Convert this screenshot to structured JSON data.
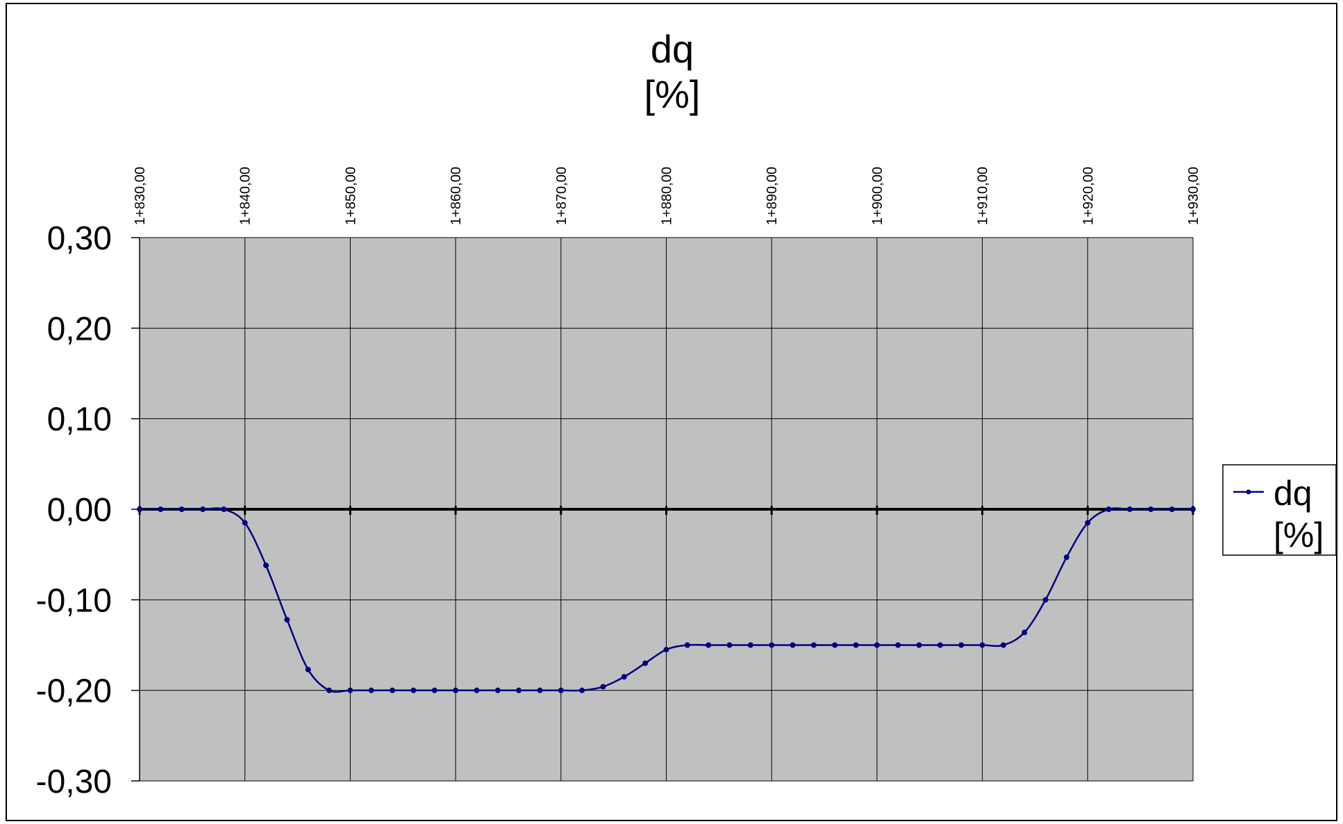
{
  "chart_data": {
    "type": "line",
    "title_line1": "dq",
    "title_line2": "[%]",
    "xlabel": "",
    "ylabel": "",
    "x_ticks": [
      "1+830,00",
      "1+840,00",
      "1+850,00",
      "1+860,00",
      "1+870,00",
      "1+880,00",
      "1+890,00",
      "1+900,00",
      "1+910,00",
      "1+920,00",
      "1+930,00"
    ],
    "y_ticks": [
      "0,30",
      "0,20",
      "0,10",
      "0,00",
      "-0,10",
      "-0,20",
      "-0,30"
    ],
    "xlim": [
      1830,
      1930
    ],
    "ylim": [
      -0.3,
      0.3
    ],
    "grid": true,
    "legend_position": "right",
    "colors": {
      "series": "#000080",
      "plot_bg": "#c0c0c0",
      "zero_line": "#000000",
      "grid": "#000000"
    },
    "series": [
      {
        "name_line1": "dq",
        "name_line2": "[%]",
        "x": [
          1830,
          1832,
          1834,
          1836,
          1838,
          1840,
          1842,
          1844,
          1846,
          1848,
          1850,
          1852,
          1854,
          1856,
          1858,
          1860,
          1862,
          1864,
          1866,
          1868,
          1870,
          1872,
          1874,
          1876,
          1878,
          1880,
          1882,
          1884,
          1886,
          1888,
          1890,
          1892,
          1894,
          1896,
          1898,
          1900,
          1902,
          1904,
          1906,
          1908,
          1910,
          1912,
          1914,
          1916,
          1918,
          1920,
          1922,
          1924,
          1926,
          1928,
          1930
        ],
        "y": [
          0,
          0,
          0,
          0,
          0,
          -0.015,
          -0.062,
          -0.122,
          -0.177,
          -0.2,
          -0.2,
          -0.2,
          -0.2,
          -0.2,
          -0.2,
          -0.2,
          -0.2,
          -0.2,
          -0.2,
          -0.2,
          -0.2,
          -0.2,
          -0.196,
          -0.185,
          -0.17,
          -0.155,
          -0.15,
          -0.15,
          -0.15,
          -0.15,
          -0.15,
          -0.15,
          -0.15,
          -0.15,
          -0.15,
          -0.15,
          -0.15,
          -0.15,
          -0.15,
          -0.15,
          -0.15,
          -0.15,
          -0.136,
          -0.1,
          -0.053,
          -0.015,
          0,
          0,
          0,
          0,
          0
        ]
      }
    ]
  }
}
